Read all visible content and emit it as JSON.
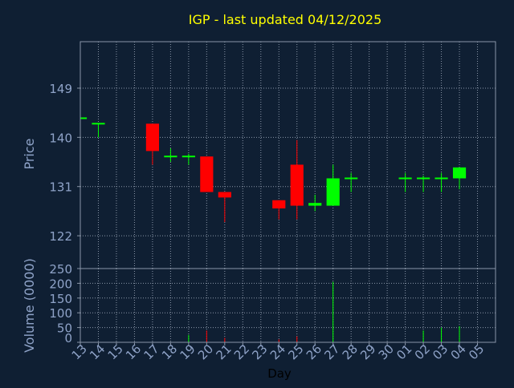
{
  "chart_data": {
    "type": "candlestick",
    "title": "IGP - last updated 04/12/2025",
    "xlabel": "Day",
    "price_ylabel": "Price",
    "volume_ylabel": "Volume (0000)",
    "x_ticks": [
      "13",
      "14",
      "15",
      "16",
      "17",
      "18",
      "19",
      "20",
      "21",
      "22",
      "23",
      "24",
      "25",
      "26",
      "27",
      "28",
      "29",
      "30",
      "01",
      "02",
      "03",
      "04",
      "05"
    ],
    "price_yticks": [
      122,
      131,
      140,
      149
    ],
    "price_ylim": [
      116,
      157.5
    ],
    "volume_yticks": [
      0,
      50,
      100,
      150,
      200,
      250
    ],
    "volume_ylim": [
      0,
      250
    ],
    "grid": true,
    "colors": {
      "background": "#0f1f33",
      "panel_border": "#8a96a8",
      "grid": "#8a96a8",
      "axis_text": "#8fa3c8",
      "title": "#ffff00",
      "xlabel": "#000000",
      "up": "#00ff00",
      "down": "#ff0000"
    },
    "candles": [
      {
        "day": "13",
        "open": 143.5,
        "high": 143.5,
        "low": 143.5,
        "close": 143.5,
        "volume": 0
      },
      {
        "day": "14",
        "open": 142.5,
        "high": 142.5,
        "low": 140.0,
        "close": 142.5,
        "volume": 0
      },
      {
        "day": "17",
        "open": 142.5,
        "high": 142.5,
        "low": 135.0,
        "close": 137.5,
        "volume": 0
      },
      {
        "day": "18",
        "open": 136.5,
        "high": 138.0,
        "low": 135.5,
        "close": 136.5,
        "volume": 0
      },
      {
        "day": "19",
        "open": 136.5,
        "high": 137.0,
        "low": 135.0,
        "close": 136.5,
        "volume": 25
      },
      {
        "day": "20",
        "open": 136.5,
        "high": 136.5,
        "low": 130.0,
        "close": 130.0,
        "volume": 40
      },
      {
        "day": "21",
        "open": 130.0,
        "high": 130.0,
        "low": 124.5,
        "close": 129.0,
        "volume": 15
      },
      {
        "day": "24",
        "open": 128.5,
        "high": 128.5,
        "low": 125.0,
        "close": 127.0,
        "volume": 10
      },
      {
        "day": "25",
        "open": 135.0,
        "high": 139.5,
        "low": 125.0,
        "close": 127.5,
        "volume": 20
      },
      {
        "day": "26",
        "open": 127.5,
        "high": 129.5,
        "low": 126.5,
        "close": 128.0,
        "volume": 0
      },
      {
        "day": "27",
        "open": 127.5,
        "high": 135.0,
        "low": 127.5,
        "close": 132.5,
        "volume": 205
      },
      {
        "day": "28",
        "open": 132.5,
        "high": 133.5,
        "low": 130.0,
        "close": 132.5,
        "volume": 0
      },
      {
        "day": "01",
        "open": 132.5,
        "high": 133.5,
        "low": 130.0,
        "close": 132.5,
        "volume": 0
      },
      {
        "day": "02",
        "open": 132.5,
        "high": 133.0,
        "low": 130.0,
        "close": 132.5,
        "volume": 40
      },
      {
        "day": "03",
        "open": 132.5,
        "high": 133.5,
        "low": 130.0,
        "close": 132.5,
        "volume": 50
      },
      {
        "day": "04",
        "open": 132.5,
        "high": 134.5,
        "low": 130.5,
        "close": 134.5,
        "volume": 55
      }
    ]
  }
}
